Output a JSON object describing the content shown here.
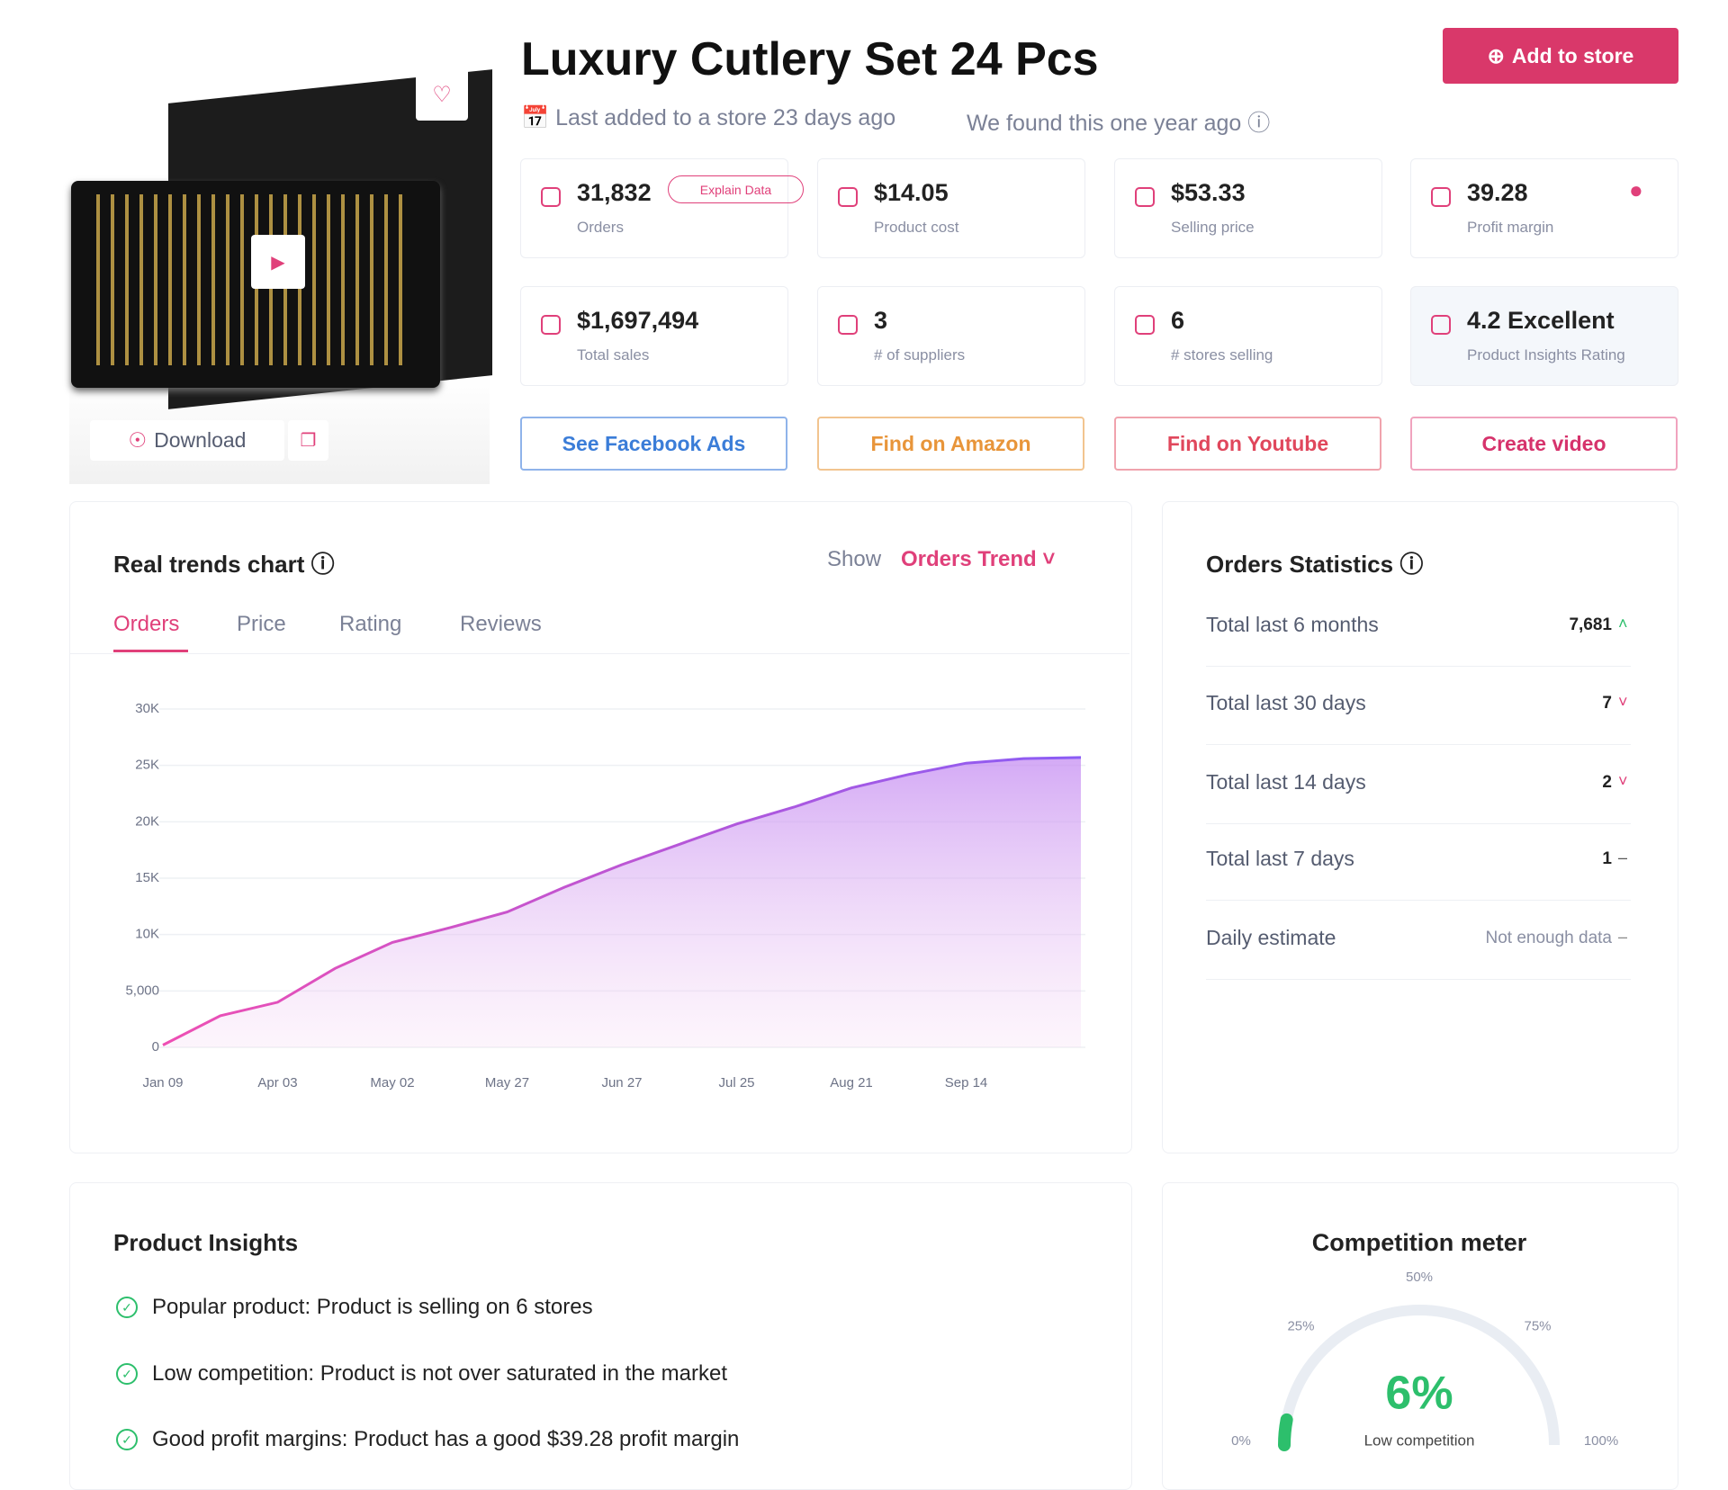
{
  "product": {
    "title": "Luxury Cutlery Set 24 Pcs",
    "last_added": "Last added to a store 23 days ago",
    "found": "We found this one year ago",
    "add_button": "Add to store",
    "download": "Download"
  },
  "stats": {
    "explain": "Explain Data",
    "cards": [
      {
        "value": "31,832",
        "label": "Orders"
      },
      {
        "value": "$14.05",
        "label": "Product cost"
      },
      {
        "value": "$53.33",
        "label": "Selling price"
      },
      {
        "value": "39.28",
        "label": "Profit margin"
      },
      {
        "value": "$1,697,494",
        "label": "Total sales"
      },
      {
        "value": "3",
        "label": "# of suppliers"
      },
      {
        "value": "6",
        "label": "# stores selling"
      },
      {
        "value": "4.2 Excellent",
        "label": "Product Insights Rating"
      }
    ]
  },
  "actions": [
    "See Facebook Ads",
    "Find on Amazon",
    "Find on Youtube",
    "Create video"
  ],
  "chart_data": {
    "type": "line",
    "title": "Real trends chart",
    "show_label": "Show",
    "selector": "Orders Trend",
    "tabs": [
      "Orders",
      "Price",
      "Rating",
      "Reviews"
    ],
    "categories": [
      "Jan 09",
      null,
      "Apr 03",
      null,
      "May 02",
      null,
      "May 27",
      null,
      "Jun 27",
      null,
      "Jul 25",
      null,
      "Aug 21",
      null,
      "Sep 14",
      null,
      null
    ],
    "values": [
      200,
      2800,
      4000,
      7000,
      9300,
      10600,
      12000,
      14200,
      16200,
      18000,
      19800,
      21300,
      23000,
      24200,
      25200,
      25600,
      25700
    ],
    "color": "#a46bf0",
    "ylim": [
      0,
      30000
    ],
    "yticks": [
      0,
      {
        "value": 5000,
        "label": "5,000"
      },
      {
        "value": 10000,
        "label": "10K"
      },
      {
        "value": 15000,
        "label": "15K"
      },
      {
        "value": 20000,
        "label": "20K"
      },
      {
        "value": 25000,
        "label": "25K"
      },
      {
        "value": 30000,
        "label": "30K"
      }
    ],
    "grid": true
  },
  "orders_statistics": {
    "title": "Orders Statistics",
    "rows": [
      {
        "label": "Total last 6 months",
        "value": "7,681"
      },
      {
        "label": "Total last 30 days",
        "value": "7"
      },
      {
        "label": "Total last 14 days",
        "value": "2"
      },
      {
        "label": "Total last 7 days",
        "value": "1"
      },
      {
        "label": "Daily estimate",
        "value": "Not enough data"
      }
    ]
  },
  "insights": {
    "title": "Product Insights",
    "items": [
      "Popular product: Product is selling on 6 stores",
      "Low competition: Product is not over saturated in the market",
      "Good profit margins: Product has a good $39.28 profit margin"
    ]
  },
  "competition": {
    "title": "Competition meter",
    "value": 6,
    "value_label": "6%",
    "caption": "Low competition",
    "range": [
      0,
      100
    ],
    "ticks": [
      {
        "value": 0,
        "label": "0%"
      },
      {
        "value": 25,
        "label": "25%"
      },
      {
        "value": 50,
        "label": "50%"
      },
      {
        "value": 75,
        "label": "75%"
      },
      {
        "value": 100,
        "label": "100%"
      }
    ]
  }
}
